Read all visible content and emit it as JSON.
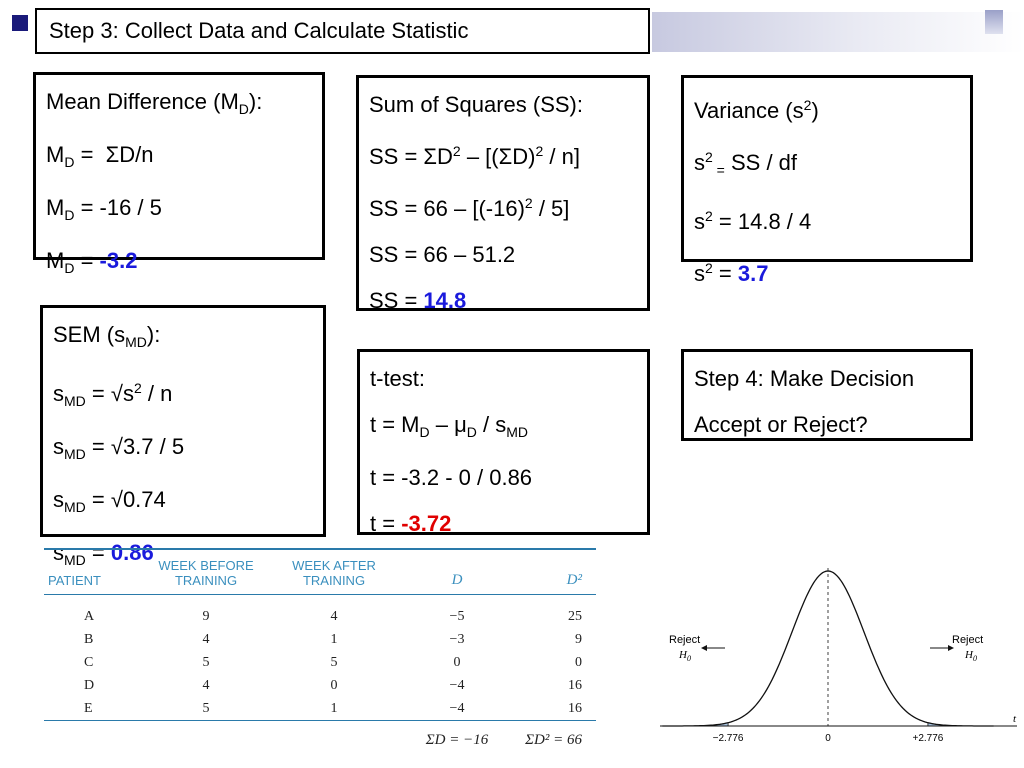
{
  "title": "Step 3: Collect Data and Calculate Statistic",
  "mean_diff": {
    "heading_pre": "Mean Difference (M",
    "heading_sub": "D",
    "heading_post": "):",
    "l1_var": "M",
    "l1_sub": "D",
    "l1_eq": " =  ",
    "l1_sigma": "Σ",
    "l1_rest": "D/n",
    "l2_var": "M",
    "l2_sub": "D",
    "l2_rest": " = -16 / 5",
    "l3_var": "M",
    "l3_sub": "D",
    "l3_eq": " = ",
    "l3_result": "-3.2"
  },
  "sum_squares": {
    "heading": "Sum of Squares (SS):",
    "l1_a": "SS = ",
    "l1_sigma1": "Σ",
    "l1_b": "D",
    "l1_sup1": "2",
    "l1_c": " – [(",
    "l1_sigma2": "Σ",
    "l1_d": "D)",
    "l1_sup2": "2",
    "l1_e": " / n]",
    "l2_a": "SS = 66 – [(-16)",
    "l2_sup": "2",
    "l2_b": " / 5]",
    "l3": "SS = 66 – 51.2",
    "l4_a": "SS = ",
    "l4_result": "14.8"
  },
  "variance": {
    "heading_pre": "Variance (s",
    "heading_sup": "2",
    "heading_post": ")",
    "l1_a": "s",
    "l1_sup": "2",
    "l1_sub": " =",
    "l1_b": " SS / df",
    "l2_a": "s",
    "l2_sup": "2",
    "l2_b": " = 14.8 / 4",
    "l3_a": "s",
    "l3_sup": "2",
    "l3_b": " = ",
    "l3_result": "3.7"
  },
  "sem": {
    "heading_pre": "SEM (s",
    "heading_sub": "MD",
    "heading_post": "):",
    "l1_a": "s",
    "l1_sub": "MD",
    "l1_b": " = ",
    "l1_root": "√",
    "l1_c": "s",
    "l1_sup": "2",
    "l1_d": " / n",
    "l2_a": "s",
    "l2_sub": "MD",
    "l2_b": " = ",
    "l2_root": "√",
    "l2_c": "3.7 / 5",
    "l3_a": "s",
    "l3_sub": "MD",
    "l3_b": " = ",
    "l3_root": "√",
    "l3_c": "0.74",
    "l4_a": "s",
    "l4_sub": "MD",
    "l4_b": " = ",
    "l4_result": "0.86"
  },
  "ttest": {
    "heading": "t-test:",
    "l1_a": "t = M",
    "l1_sub1": "D",
    "l1_b": " – μ",
    "l1_sub2": "D",
    "l1_c": " / s",
    "l1_sub3": "MD",
    "l2": "t = -3.2 - 0 / 0.86",
    "l3_a": "t = ",
    "l3_result": "-3.72"
  },
  "step4": {
    "line1": "Step 4: Make Decision",
    "line2": "Accept or Reject?"
  },
  "table": {
    "headers": [
      "PATIENT",
      "WEEK BEFORE\nTRAINING",
      "WEEK AFTER\nTRAINING",
      "D",
      "D²"
    ],
    "rows": [
      [
        "A",
        "9",
        "4",
        "−5",
        "25"
      ],
      [
        "B",
        "4",
        "1",
        "−3",
        "9"
      ],
      [
        "C",
        "5",
        "5",
        "0",
        "0"
      ],
      [
        "D",
        "4",
        "0",
        "−4",
        "16"
      ],
      [
        "E",
        "5",
        "1",
        "−4",
        "16"
      ]
    ],
    "sum_d": "ΣD = −16",
    "sum_d2": "ΣD² = 66"
  },
  "distribution": {
    "reject_label": "Reject",
    "h0_label": "H",
    "h0_sub": "0",
    "tick_left": "−2.776",
    "tick_center": "0",
    "tick_right": "+2.776",
    "axis_label": "t",
    "critical_value": 2.776,
    "shade_color": "#a9c4e0"
  }
}
